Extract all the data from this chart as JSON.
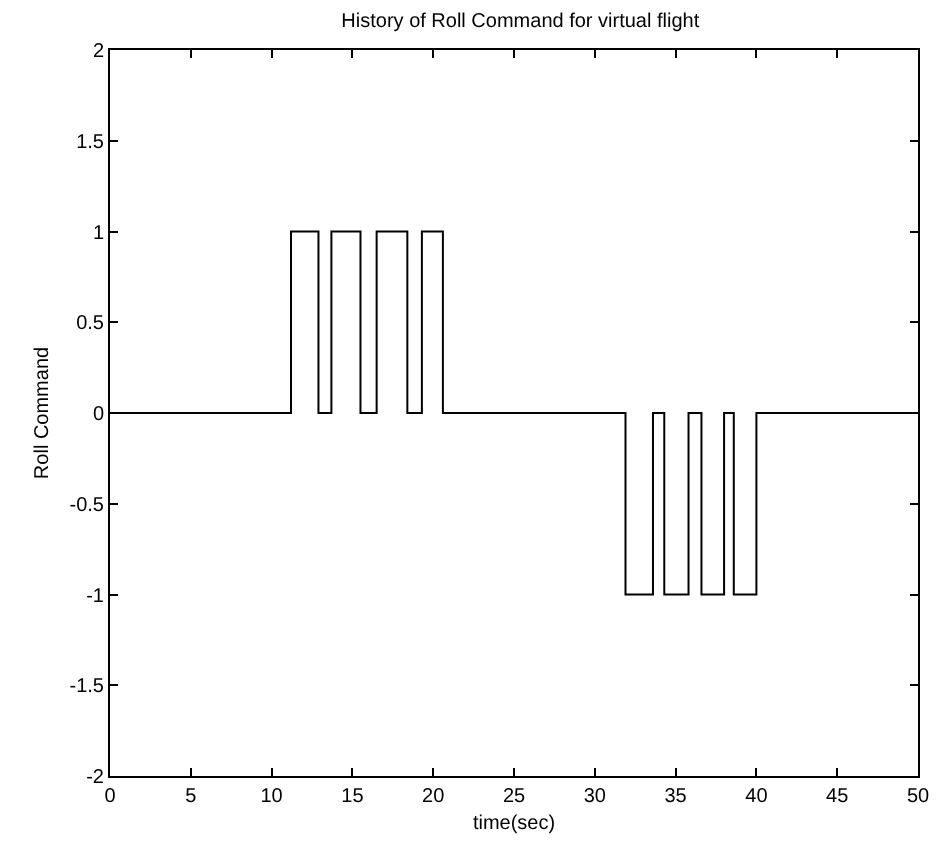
{
  "chart_data": {
    "type": "step",
    "title": "History of Roll Command for virtual flight",
    "xlabel": "time(sec)",
    "ylabel": "Roll Command",
    "x": [
      0,
      11.2,
      12.9,
      13.7,
      15.5,
      16.5,
      18.4,
      19.3,
      20.6,
      31.9,
      33.6,
      34.3,
      35.8,
      36.6,
      38.0,
      38.6,
      40.0,
      50
    ],
    "series": [
      {
        "color": "#000000",
        "values": [
          0,
          1,
          0,
          1,
          0,
          1,
          0,
          1,
          0,
          -1,
          0,
          -1,
          0,
          -1,
          0,
          -1,
          0,
          0
        ]
      }
    ],
    "xlim": [
      0,
      50
    ],
    "xticks": [
      0,
      5,
      10,
      15,
      20,
      25,
      30,
      35,
      40,
      45,
      50
    ],
    "ylim": [
      -2,
      2
    ],
    "yticks": [
      -2,
      -1.5,
      -1,
      -0.5,
      0,
      0.5,
      1,
      1.5,
      2
    ],
    "marker": "none",
    "line_style": "solid"
  }
}
